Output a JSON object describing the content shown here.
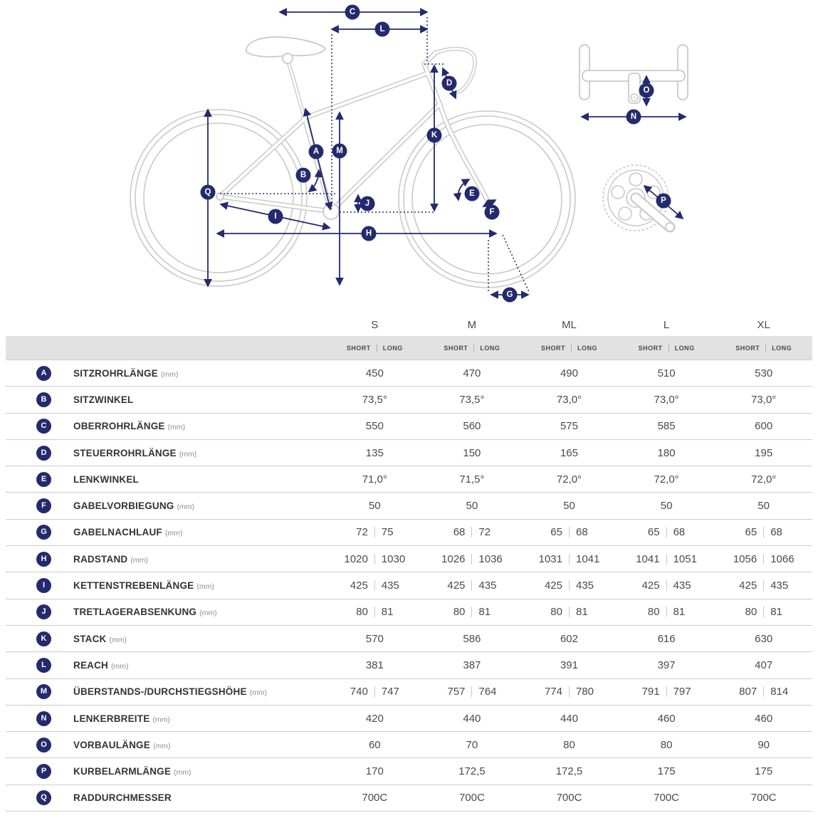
{
  "accent_color": "#232a6d",
  "line_color": "#c9c9c9",
  "diagram": {
    "badge_letters": [
      "A",
      "B",
      "C",
      "D",
      "E",
      "F",
      "G",
      "H",
      "I",
      "J",
      "K",
      "L",
      "M",
      "N",
      "O",
      "P",
      "Q"
    ]
  },
  "table": {
    "sizes": [
      "S",
      "M",
      "ML",
      "L",
      "XL"
    ],
    "sub_columns": [
      "SHORT",
      "LONG"
    ],
    "rows": [
      {
        "letter": "A",
        "label": "SITZROHRLÄNGE",
        "unit": "(mm)",
        "values": [
          "450",
          "470",
          "490",
          "510",
          "530"
        ]
      },
      {
        "letter": "B",
        "label": "SITZWINKEL",
        "unit": "",
        "values": [
          "73,5°",
          "73,5°",
          "73,0°",
          "73,0°",
          "73,0°"
        ]
      },
      {
        "letter": "C",
        "label": "OBERROHRLÄNGE",
        "unit": "(mm)",
        "values": [
          "550",
          "560",
          "575",
          "585",
          "600"
        ]
      },
      {
        "letter": "D",
        "label": "STEUERROHRLÄNGE",
        "unit": "(mm)",
        "values": [
          "135",
          "150",
          "165",
          "180",
          "195"
        ]
      },
      {
        "letter": "E",
        "label": "LENKWINKEL",
        "unit": "",
        "values": [
          "71,0°",
          "71,5°",
          "72,0°",
          "72,0°",
          "72,0°"
        ]
      },
      {
        "letter": "F",
        "label": "GABELVORBIEGUNG",
        "unit": "(mm)",
        "values": [
          "50",
          "50",
          "50",
          "50",
          "50"
        ]
      },
      {
        "letter": "G",
        "label": "GABELNACHLAUF",
        "unit": "(mm)",
        "values": [
          [
            "72",
            "75"
          ],
          [
            "68",
            "72"
          ],
          [
            "65",
            "68"
          ],
          [
            "65",
            "68"
          ],
          [
            "65",
            "68"
          ]
        ]
      },
      {
        "letter": "H",
        "label": "RADSTAND",
        "unit": "(mm)",
        "values": [
          [
            "1020",
            "1030"
          ],
          [
            "1026",
            "1036"
          ],
          [
            "1031",
            "1041"
          ],
          [
            "1041",
            "1051"
          ],
          [
            "1056",
            "1066"
          ]
        ]
      },
      {
        "letter": "I",
        "label": "KETTENSTREBENLÄNGE",
        "unit": "(mm)",
        "values": [
          [
            "425",
            "435"
          ],
          [
            "425",
            "435"
          ],
          [
            "425",
            "435"
          ],
          [
            "425",
            "435"
          ],
          [
            "425",
            "435"
          ]
        ]
      },
      {
        "letter": "J",
        "label": "TRETLAGERABSENKUNG",
        "unit": "(mm)",
        "values": [
          [
            "80",
            "81"
          ],
          [
            "80",
            "81"
          ],
          [
            "80",
            "81"
          ],
          [
            "80",
            "81"
          ],
          [
            "80",
            "81"
          ]
        ]
      },
      {
        "letter": "K",
        "label": "STACK",
        "unit": "(mm)",
        "values": [
          "570",
          "586",
          "602",
          "616",
          "630"
        ]
      },
      {
        "letter": "L",
        "label": "REACH",
        "unit": "(mm)",
        "values": [
          "381",
          "387",
          "391",
          "397",
          "407"
        ]
      },
      {
        "letter": "M",
        "label": "ÜBERSTANDS-/DURCHSTIEGSHÖHE",
        "unit": "(mm)",
        "values": [
          [
            "740",
            "747"
          ],
          [
            "757",
            "764"
          ],
          [
            "774",
            "780"
          ],
          [
            "791",
            "797"
          ],
          [
            "807",
            "814"
          ]
        ]
      },
      {
        "letter": "N",
        "label": "LENKERBREITE",
        "unit": "(mm)",
        "values": [
          "420",
          "440",
          "440",
          "460",
          "460"
        ]
      },
      {
        "letter": "O",
        "label": "VORBAULÄNGE",
        "unit": "(mm)",
        "values": [
          "60",
          "70",
          "80",
          "80",
          "90"
        ]
      },
      {
        "letter": "P",
        "label": "KURBELARMLÄNGE",
        "unit": "(mm)",
        "values": [
          "170",
          "172,5",
          "172,5",
          "175",
          "175"
        ]
      },
      {
        "letter": "Q",
        "label": "RADDURCHMESSER",
        "unit": "",
        "values": [
          "700C",
          "700C",
          "700C",
          "700C",
          "700C"
        ]
      }
    ]
  }
}
